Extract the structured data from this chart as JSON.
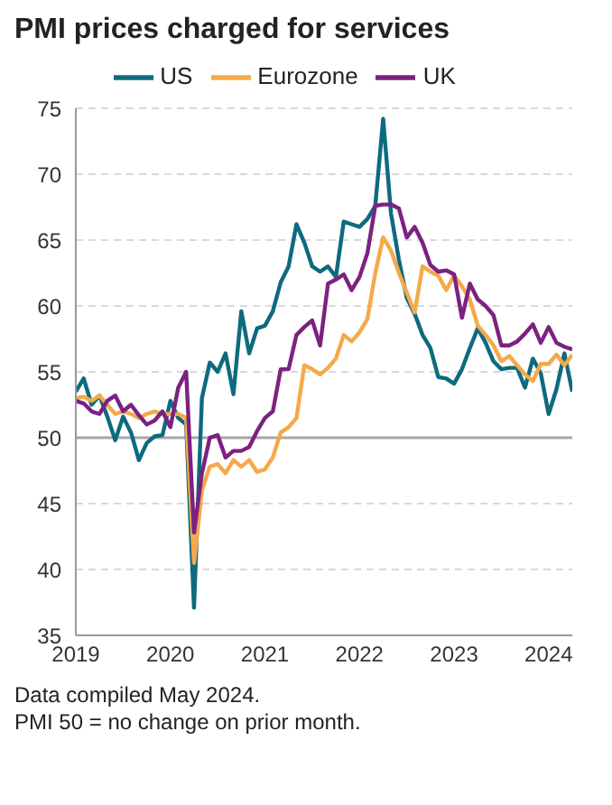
{
  "chart_data": {
    "type": "line",
    "title": "PMI prices charged for services",
    "x": [
      "2019-01",
      "2019-02",
      "2019-03",
      "2019-04",
      "2019-05",
      "2019-06",
      "2019-07",
      "2019-08",
      "2019-09",
      "2019-10",
      "2019-11",
      "2019-12",
      "2020-01",
      "2020-02",
      "2020-03",
      "2020-04",
      "2020-05",
      "2020-06",
      "2020-07",
      "2020-08",
      "2020-09",
      "2020-10",
      "2020-11",
      "2020-12",
      "2021-01",
      "2021-02",
      "2021-03",
      "2021-04",
      "2021-05",
      "2021-06",
      "2021-07",
      "2021-08",
      "2021-09",
      "2021-10",
      "2021-11",
      "2021-12",
      "2022-01",
      "2022-02",
      "2022-03",
      "2022-04",
      "2022-05",
      "2022-06",
      "2022-07",
      "2022-08",
      "2022-09",
      "2022-10",
      "2022-11",
      "2022-12",
      "2023-01",
      "2023-02",
      "2023-03",
      "2023-04",
      "2023-05",
      "2023-06",
      "2023-07",
      "2023-08",
      "2023-09",
      "2023-10",
      "2023-11",
      "2023-12",
      "2024-01",
      "2024-02",
      "2024-03",
      "2024-04"
    ],
    "series": [
      {
        "name": "US",
        "color": "#0e6a7e",
        "values": [
          53.5,
          54.5,
          52.5,
          53.2,
          51.6,
          49.8,
          51.6,
          50.4,
          48.3,
          49.6,
          50.1,
          50.2,
          52.8,
          51.5,
          51,
          37.1,
          53,
          55.7,
          55,
          56.4,
          53.3,
          59.6,
          56.4,
          58.3,
          58.5,
          59.6,
          61.8,
          63,
          66.2,
          64.8,
          63,
          62.6,
          63,
          62.2,
          66.4,
          66.2,
          66,
          66.6,
          67.6,
          74.2,
          67,
          63.5,
          60.6,
          59.4,
          57.8,
          56.8,
          54.6,
          54.5,
          54.1,
          55.2,
          56.8,
          58.3,
          57.2,
          55.8,
          55.2,
          55.3,
          55.3,
          53.8,
          56,
          54.9,
          51.8,
          53.7,
          56.4,
          53.5
        ]
      },
      {
        "name": "Eurozone",
        "color": "#f4a94a",
        "values": [
          53,
          53.1,
          52.8,
          53.2,
          52.5,
          51.8,
          52,
          51.8,
          51.5,
          51.8,
          52,
          51.8,
          51.8,
          51.8,
          51.5,
          40.5,
          46,
          47.8,
          48,
          47.3,
          48.3,
          47.8,
          48.3,
          47.4,
          47.6,
          48.5,
          50.4,
          50.8,
          51.5,
          55.5,
          55.2,
          54.8,
          55.3,
          56,
          57.8,
          57.3,
          58,
          59,
          62.5,
          65.2,
          64.2,
          62.5,
          61,
          59.5,
          63,
          62.6,
          62.3,
          61.2,
          62.3,
          61.5,
          60.5,
          58.5,
          57.8,
          57,
          55.8,
          56.2,
          55.5,
          54.8,
          54.3,
          55.6,
          55.6,
          56.3,
          55.5,
          56.3
        ]
      },
      {
        "name": "UK",
        "color": "#7b2281",
        "values": [
          52.8,
          52.6,
          52,
          51.8,
          52.8,
          53.2,
          52,
          52.5,
          51.7,
          51,
          51.3,
          52,
          50.8,
          53.8,
          55,
          42.8,
          47.3,
          50,
          50.2,
          48.5,
          49,
          49,
          49.3,
          50.5,
          51.5,
          52,
          55.2,
          55.2,
          57.8,
          58.4,
          58.9,
          57,
          61.7,
          62,
          62.4,
          61.2,
          62.2,
          64,
          67.6,
          67.7,
          67.7,
          67.4,
          65.2,
          66,
          64.8,
          63.1,
          62.6,
          62.7,
          62.4,
          59.1,
          61.7,
          60.5,
          60,
          59.3,
          57,
          57,
          57.3,
          57.9,
          58.6,
          57.2,
          58.4,
          57.2,
          56.9,
          56.7
        ]
      }
    ],
    "xlim": [
      "2019-01",
      "2024-04"
    ],
    "xticks": [
      {
        "value": "2019-01",
        "label": "2019"
      },
      {
        "value": "2020-01",
        "label": "2020"
      },
      {
        "value": "2021-01",
        "label": "2021"
      },
      {
        "value": "2022-01",
        "label": "2022"
      },
      {
        "value": "2023-01",
        "label": "2023"
      },
      {
        "value": "2024-01",
        "label": "2024"
      }
    ],
    "ylim": [
      35,
      75
    ],
    "yticks": [
      35,
      40,
      45,
      50,
      55,
      60,
      65,
      70,
      75
    ],
    "grid": "y",
    "legend": "top",
    "marker": "none",
    "line_style": "solid",
    "ref_lines": [
      {
        "axis": "y",
        "value": 50,
        "color": "#a6a6a6"
      }
    ],
    "annotations": [
      "Data compiled May 2024.",
      "PMI 50 = no change on prior month."
    ]
  }
}
